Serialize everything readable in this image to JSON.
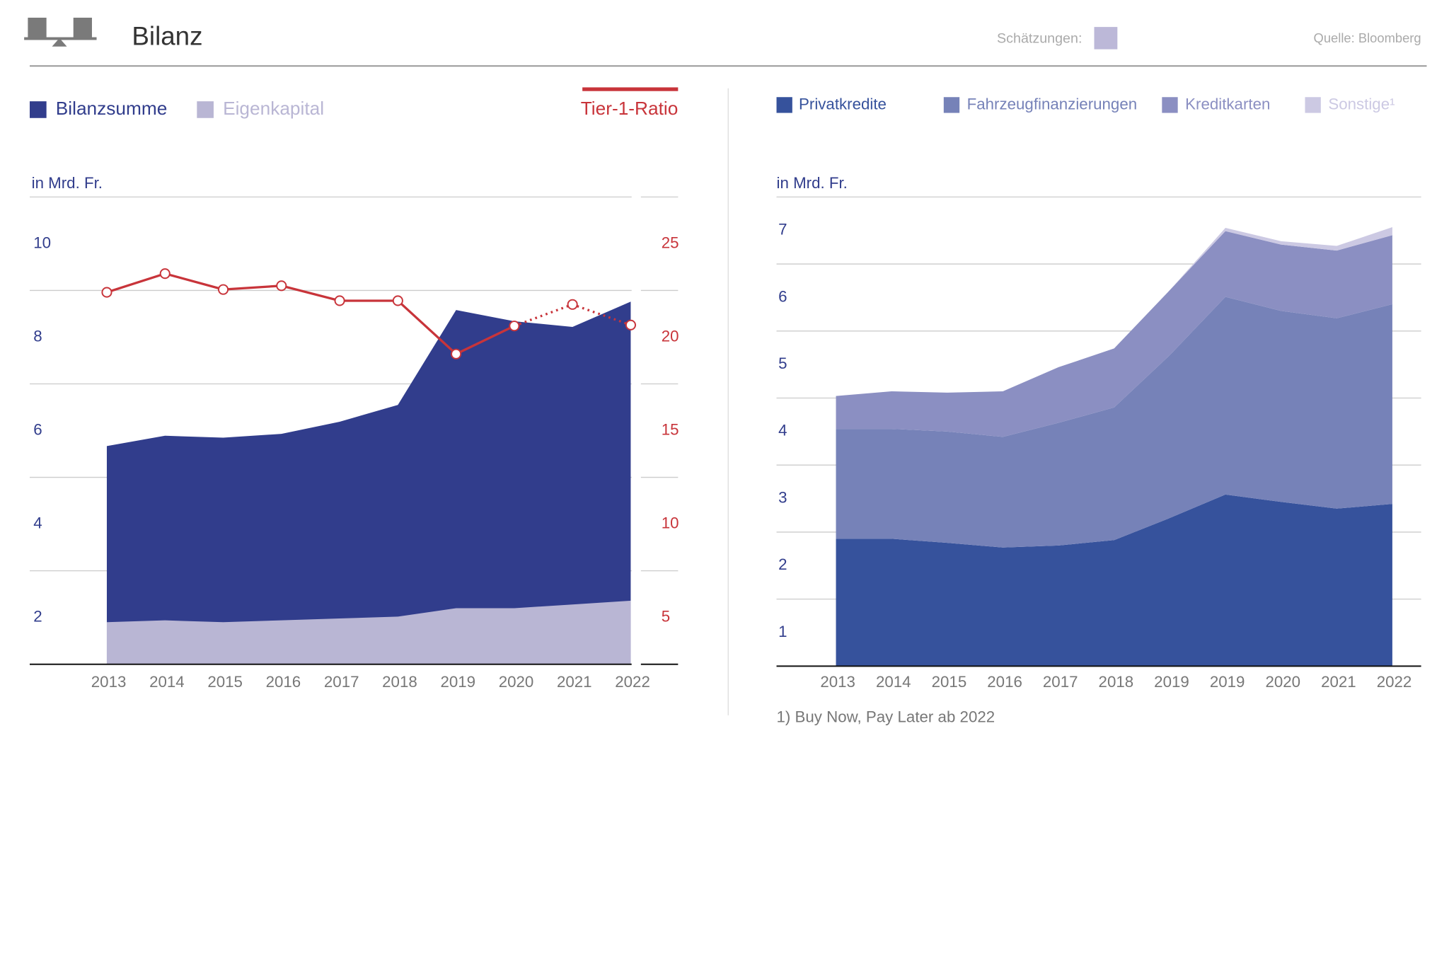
{
  "header": {
    "title": "Bilanz",
    "estimates_label": "Schätzungen:",
    "source": "Quelle: Bloomberg"
  },
  "chart_data": [
    {
      "type": "area",
      "ylabel": "in Mrd. Fr.",
      "categories": [
        "2013",
        "2014",
        "2015",
        "2016",
        "2017",
        "2018",
        "2019",
        "2020",
        "2021",
        "2022"
      ],
      "ylim": [
        1,
        11
      ],
      "yticks": [
        2,
        4,
        6,
        8,
        10
      ],
      "y2lim": [
        2.5,
        27.5
      ],
      "y2ticks": [
        5,
        10,
        15,
        20,
        25
      ],
      "grid": true,
      "stacked": false,
      "estimate_start": "2020",
      "series": [
        {
          "name": "Bilanzsumme",
          "color": "#313d8c",
          "values": [
            5.67,
            5.89,
            5.85,
            5.93,
            6.19,
            6.55,
            8.58,
            8.34,
            8.22,
            8.76
          ]
        },
        {
          "name": "Eigenkapital",
          "color": "#b9b6d4",
          "values": [
            1.9,
            1.94,
            1.9,
            1.94,
            1.98,
            2.02,
            2.2,
            2.2,
            2.28,
            2.36
          ]
        },
        {
          "name": "Tier-1-Ratio",
          "type": "line",
          "axis": "y2",
          "color": "#c8343a",
          "values": [
            22.4,
            23.4,
            22.55,
            22.75,
            21.95,
            21.95,
            19.1,
            20.6,
            21.75,
            20.65
          ]
        }
      ]
    },
    {
      "type": "area",
      "ylabel": "in Mrd. Fr.",
      "note": "1) Buy Now, Pay Later ab 2022",
      "categories": [
        "2013",
        "2014",
        "2015",
        "2016",
        "2017",
        "2018",
        "2019",
        "2019",
        "2020",
        "2021",
        "2022"
      ],
      "ylim": [
        0.5,
        7.5
      ],
      "yticks": [
        1,
        2,
        3,
        4,
        5,
        6,
        7
      ],
      "grid": true,
      "stacked": true,
      "series": [
        {
          "name": "Privatkredite",
          "color": "#36529c",
          "values": [
            2.4,
            2.4,
            2.34,
            2.27,
            2.3,
            2.38,
            2.71,
            3.06,
            2.95,
            2.85,
            2.92
          ]
        },
        {
          "name": "Fahrzeugfinanzierungen",
          "color": "#7682b8",
          "values": [
            1.64,
            1.64,
            1.66,
            1.65,
            1.83,
            1.98,
            2.43,
            2.95,
            2.85,
            2.84,
            2.98
          ]
        },
        {
          "name": "Kreditkarten",
          "color": "#8b8fc2",
          "values": [
            0.49,
            0.56,
            0.58,
            0.68,
            0.83,
            0.88,
            0.97,
            0.98,
            0.99,
            1.01,
            1.03
          ]
        },
        {
          "name": "Sonstige¹",
          "color": "#ccc9e3",
          "values": [
            0,
            0,
            0,
            0,
            0,
            0,
            0,
            0.05,
            0.05,
            0.07,
            0.12
          ]
        }
      ]
    }
  ]
}
